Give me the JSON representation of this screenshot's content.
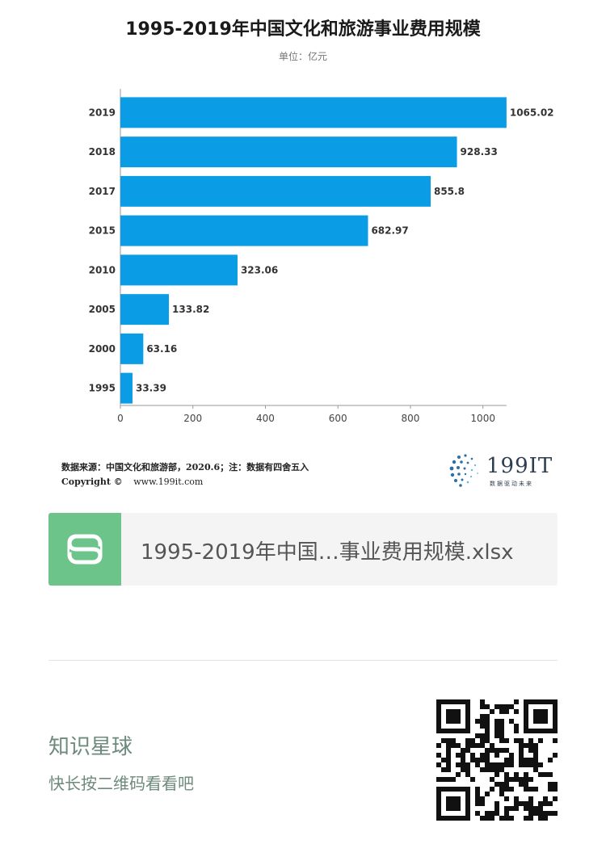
{
  "chart_data": {
    "type": "bar",
    "orientation": "horizontal",
    "title": "1995-2019年中国文化和旅游事业费用规模",
    "subtitle": "单位：亿元",
    "categories": [
      "2019",
      "2018",
      "2017",
      "2015",
      "2010",
      "2005",
      "2000",
      "1995"
    ],
    "values": [
      1065.02,
      928.33,
      855.8,
      682.97,
      323.06,
      133.82,
      63.16,
      33.39
    ],
    "value_labels": [
      "1065.02",
      "928.33",
      "855.8",
      "682.97",
      "323.06",
      "133.82",
      "63.16",
      "33.39"
    ],
    "x_ticks": [
      "0",
      "200",
      "400",
      "600",
      "800",
      "1000"
    ],
    "xlim": [
      0,
      1065.02
    ],
    "bar_color": "#0a9de6",
    "grid": false,
    "legend": "none"
  },
  "footer": {
    "source": "数据来源：中国文化和旅游部，2020.6；注：数据有四舍五入",
    "copyright_label": "Copyright ©",
    "site": "www.199it.com",
    "logo_text": "199IT",
    "logo_slogan": "数据驱动未来"
  },
  "file_card": {
    "icon": "spreadsheet-s-icon",
    "icon_color": "#6cc48a",
    "file_name": "1995-2019年中国…事业费用规模.xlsx"
  },
  "planet": {
    "title": "知识星球",
    "subtitle": "快长按二维码看看吧",
    "text_color": "#6e8a7c"
  }
}
